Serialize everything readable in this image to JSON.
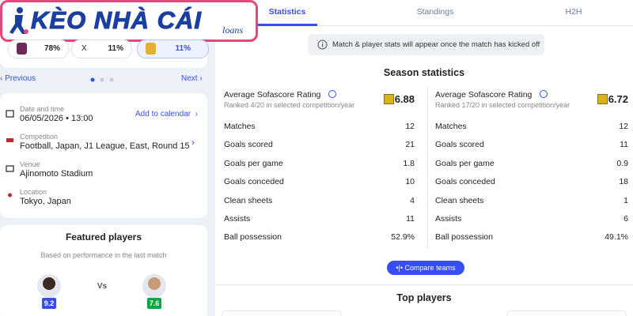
{
  "logo": {
    "title": "KÈO NHÀ CÁI",
    "suffix": "loans"
  },
  "odds": [
    {
      "value": "78%"
    },
    {
      "label": "X",
      "value": "11%"
    },
    {
      "value": "11%"
    }
  ],
  "nav": {
    "previous": "Previous",
    "next": "Next"
  },
  "match_info": {
    "date": {
      "label": "Date and time",
      "value": "06/05/2026 • 13:00",
      "action": "Add to calendar"
    },
    "competition": {
      "label": "Competition",
      "value": "Football, Japan, J1 League, East, Round 15"
    },
    "venue": {
      "label": "Venue",
      "value": "Ajinomoto Stadium"
    },
    "location": {
      "label": "Location",
      "value": "Tokyo, Japan"
    }
  },
  "featured_players": {
    "title": "Featured players",
    "subtitle": "Based on performance in the last match",
    "vs": "Vs",
    "ratings": [
      "9.2",
      "7.6"
    ]
  },
  "tabs": [
    "Statistics",
    "Standings",
    "H2H"
  ],
  "notice": "Match & player stats will appear once the match has kicked off",
  "season_statistics": {
    "title": "Season statistics",
    "teams": [
      {
        "rating_label": "Average Sofascore Rating",
        "rank": "Ranked 4/20 in selected competition/year",
        "rating": "6.88",
        "stats": [
          {
            "label": "Matches",
            "value": "12"
          },
          {
            "label": "Goals scored",
            "value": "21"
          },
          {
            "label": "Goals per game",
            "value": "1.8"
          },
          {
            "label": "Goals conceded",
            "value": "10"
          },
          {
            "label": "Clean sheets",
            "value": "4"
          },
          {
            "label": "Assists",
            "value": "11"
          },
          {
            "label": "Ball possession",
            "value": "52.9%"
          }
        ]
      },
      {
        "rating_label": "Average Sofascore Rating",
        "rank": "Ranked 17/20 in selected competition/year",
        "rating": "6.72",
        "stats": [
          {
            "label": "Matches",
            "value": "12"
          },
          {
            "label": "Goals scored",
            "value": "11"
          },
          {
            "label": "Goals per game",
            "value": "0.9"
          },
          {
            "label": "Goals conceded",
            "value": "18"
          },
          {
            "label": "Clean sheets",
            "value": "1"
          },
          {
            "label": "Assists",
            "value": "6"
          },
          {
            "label": "Ball possession",
            "value": "49.1%"
          }
        ]
      }
    ]
  },
  "compare_button": "Compare teams",
  "top_players": {
    "title": "Top players"
  }
}
